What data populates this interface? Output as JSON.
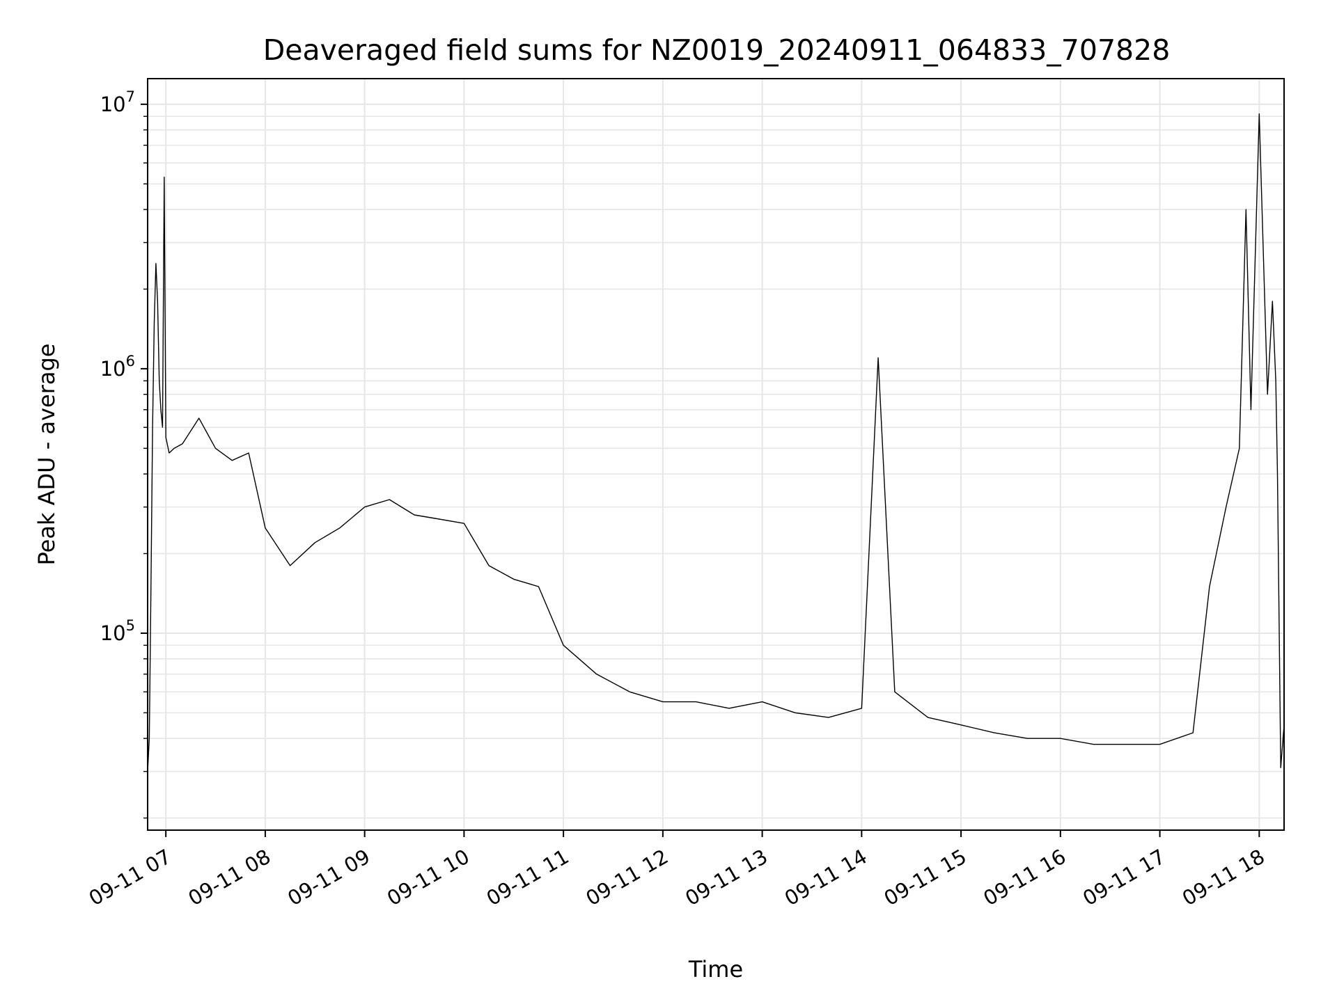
{
  "chart_data": {
    "type": "line",
    "title": "Deaveraged field sums for NZ0019_20240911_064833_707828",
    "xlabel": "Time",
    "ylabel": "Peak ADU - average",
    "y_scale": "log",
    "ylim": [
      18000,
      12500000
    ],
    "xlim": [
      "2024-09-11 06:49",
      "2024-09-11 18:15"
    ],
    "grid": true,
    "line_color": "#000000",
    "x_ticks": [
      "2024-09-11 07:00",
      "2024-09-11 08:00",
      "2024-09-11 09:00",
      "2024-09-11 10:00",
      "2024-09-11 11:00",
      "2024-09-11 12:00",
      "2024-09-11 13:00",
      "2024-09-11 14:00",
      "2024-09-11 15:00",
      "2024-09-11 16:00",
      "2024-09-11 17:00",
      "2024-09-11 18:00"
    ],
    "x_tick_labels": [
      "09-11 07",
      "09-11 08",
      "09-11 09",
      "09-11 10",
      "09-11 11",
      "09-11 12",
      "09-11 13",
      "09-11 14",
      "09-11 15",
      "09-11 16",
      "09-11 17",
      "09-11 18"
    ],
    "y_ticks": [
      100000,
      1000000,
      10000000
    ],
    "y_tick_labels": [
      {
        "base": "10",
        "exp": "5"
      },
      {
        "base": "10",
        "exp": "6"
      },
      {
        "base": "10",
        "exp": "7"
      }
    ],
    "series": [
      {
        "x": [
          "2024-09-11 06:49",
          "2024-09-11 06:50",
          "2024-09-11 06:51",
          "2024-09-11 06:52",
          "2024-09-11 06:53",
          "2024-09-11 06:54",
          "2024-09-11 06:55",
          "2024-09-11 06:56",
          "2024-09-11 06:57",
          "2024-09-11 06:58",
          "2024-09-11 06:59",
          "2024-09-11 07:00",
          "2024-09-11 07:02",
          "2024-09-11 07:05",
          "2024-09-11 07:10",
          "2024-09-11 07:20",
          "2024-09-11 07:30",
          "2024-09-11 07:40",
          "2024-09-11 07:50",
          "2024-09-11 08:00",
          "2024-09-11 08:15",
          "2024-09-11 08:30",
          "2024-09-11 08:45",
          "2024-09-11 09:00",
          "2024-09-11 09:15",
          "2024-09-11 09:30",
          "2024-09-11 09:45",
          "2024-09-11 10:00",
          "2024-09-11 10:15",
          "2024-09-11 10:30",
          "2024-09-11 10:45",
          "2024-09-11 11:00",
          "2024-09-11 11:20",
          "2024-09-11 11:40",
          "2024-09-11 12:00",
          "2024-09-11 12:20",
          "2024-09-11 12:40",
          "2024-09-11 13:00",
          "2024-09-11 13:20",
          "2024-09-11 13:40",
          "2024-09-11 14:00",
          "2024-09-11 14:10",
          "2024-09-11 14:20",
          "2024-09-11 14:40",
          "2024-09-11 15:00",
          "2024-09-11 15:20",
          "2024-09-11 15:40",
          "2024-09-11 16:00",
          "2024-09-11 16:20",
          "2024-09-11 16:40",
          "2024-09-11 17:00",
          "2024-09-11 17:20",
          "2024-09-11 17:30",
          "2024-09-11 17:40",
          "2024-09-11 17:48",
          "2024-09-11 17:52",
          "2024-09-11 17:55",
          "2024-09-11 18:00",
          "2024-09-11 18:05",
          "2024-09-11 18:08",
          "2024-09-11 18:10",
          "2024-09-11 18:11",
          "2024-09-11 18:13",
          "2024-09-11 18:15"
        ],
        "values": [
          30000,
          40000,
          150000,
          600000,
          1500000,
          2500000,
          1800000,
          900000,
          700000,
          600000,
          5300000,
          550000,
          480000,
          500000,
          520000,
          650000,
          500000,
          450000,
          480000,
          250000,
          180000,
          220000,
          250000,
          300000,
          320000,
          280000,
          270000,
          260000,
          180000,
          160000,
          150000,
          90000,
          70000,
          60000,
          55000,
          55000,
          52000,
          55000,
          50000,
          48000,
          52000,
          1100000,
          60000,
          48000,
          45000,
          42000,
          40000,
          40000,
          38000,
          38000,
          38000,
          42000,
          150000,
          300000,
          500000,
          4000000,
          700000,
          9200000,
          800000,
          1800000,
          900000,
          400000,
          31000,
          45000
        ]
      }
    ]
  }
}
